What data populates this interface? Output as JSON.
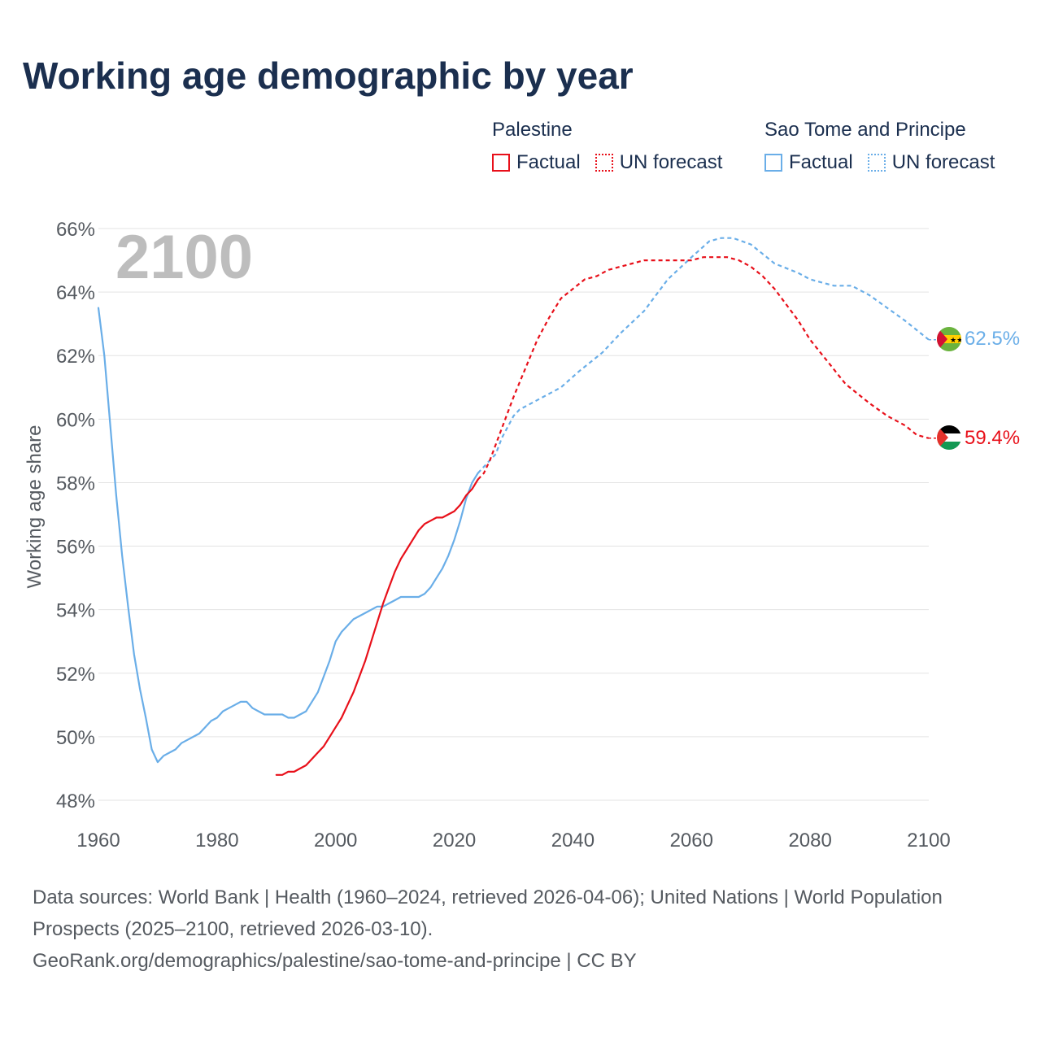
{
  "title": "Working age demographic by year",
  "legend": {
    "palestine": {
      "group": "Palestine",
      "factual": "Factual",
      "forecast": "UN forecast",
      "color": "#e8101a"
    },
    "stp": {
      "group": "Sao Tome and Principe",
      "factual": "Factual",
      "forecast": "UN forecast",
      "color": "#6aaee8"
    }
  },
  "footer": {
    "line1": "Data sources: World Bank | Health (1960–2024, retrieved 2026-04-06); United Nations | World Population Prospects (2025–2100, retrieved 2026-03-10).",
    "line2": "GeoRank.org/demographics/palestine/sao-tome-and-principe | CC BY"
  },
  "chart_data": {
    "type": "line",
    "title": "Working age demographic by year",
    "year_label": "2100",
    "xlabel": "",
    "ylabel": "Working age share",
    "xlim": [
      1960,
      2100
    ],
    "ylim": [
      48,
      66
    ],
    "x_ticks": [
      1960,
      1980,
      2000,
      2020,
      2040,
      2060,
      2080,
      2100
    ],
    "x_tick_labels": [
      "1960",
      "1980",
      "2000",
      "2020",
      "2040",
      "2060",
      "2080",
      "2100"
    ],
    "y_ticks": [
      48,
      50,
      52,
      54,
      56,
      58,
      60,
      62,
      64,
      66
    ],
    "y_tick_labels": [
      "48%",
      "50%",
      "52%",
      "54%",
      "56%",
      "58%",
      "60%",
      "62%",
      "64%",
      "66%"
    ],
    "series": [
      {
        "name": "Sao Tome and Principe",
        "color": "#6aaee8",
        "end_label": "62.5%",
        "factual": [
          [
            1960,
            63.5
          ],
          [
            1961,
            62.0
          ],
          [
            1962,
            59.8
          ],
          [
            1963,
            57.6
          ],
          [
            1964,
            55.7
          ],
          [
            1965,
            54.1
          ],
          [
            1966,
            52.6
          ],
          [
            1967,
            51.5
          ],
          [
            1968,
            50.6
          ],
          [
            1969,
            49.6
          ],
          [
            1970,
            49.2
          ],
          [
            1971,
            49.4
          ],
          [
            1972,
            49.5
          ],
          [
            1973,
            49.6
          ],
          [
            1974,
            49.8
          ],
          [
            1975,
            49.9
          ],
          [
            1976,
            50.0
          ],
          [
            1977,
            50.1
          ],
          [
            1978,
            50.3
          ],
          [
            1979,
            50.5
          ],
          [
            1980,
            50.6
          ],
          [
            1981,
            50.8
          ],
          [
            1982,
            50.9
          ],
          [
            1983,
            51.0
          ],
          [
            1984,
            51.1
          ],
          [
            1985,
            51.1
          ],
          [
            1986,
            50.9
          ],
          [
            1987,
            50.8
          ],
          [
            1988,
            50.7
          ],
          [
            1989,
            50.7
          ],
          [
            1990,
            50.7
          ],
          [
            1991,
            50.7
          ],
          [
            1992,
            50.6
          ],
          [
            1993,
            50.6
          ],
          [
            1994,
            50.7
          ],
          [
            1995,
            50.8
          ],
          [
            1996,
            51.1
          ],
          [
            1997,
            51.4
          ],
          [
            1998,
            51.9
          ],
          [
            1999,
            52.4
          ],
          [
            2000,
            53.0
          ],
          [
            2001,
            53.3
          ],
          [
            2002,
            53.5
          ],
          [
            2003,
            53.7
          ],
          [
            2004,
            53.8
          ],
          [
            2005,
            53.9
          ],
          [
            2006,
            54.0
          ],
          [
            2007,
            54.1
          ],
          [
            2008,
            54.1
          ],
          [
            2009,
            54.2
          ],
          [
            2010,
            54.3
          ],
          [
            2011,
            54.4
          ],
          [
            2012,
            54.4
          ],
          [
            2013,
            54.4
          ],
          [
            2014,
            54.4
          ],
          [
            2015,
            54.5
          ],
          [
            2016,
            54.7
          ],
          [
            2017,
            55.0
          ],
          [
            2018,
            55.3
          ],
          [
            2019,
            55.7
          ],
          [
            2020,
            56.2
          ],
          [
            2021,
            56.8
          ],
          [
            2022,
            57.5
          ],
          [
            2023,
            58.0
          ],
          [
            2024,
            58.3
          ]
        ],
        "forecast": [
          [
            2024,
            58.3
          ],
          [
            2025,
            58.5
          ],
          [
            2027,
            58.9
          ],
          [
            2028,
            59.4
          ],
          [
            2030,
            60.1
          ],
          [
            2031,
            60.3
          ],
          [
            2035,
            60.7
          ],
          [
            2038,
            61.0
          ],
          [
            2041,
            61.5
          ],
          [
            2045,
            62.1
          ],
          [
            2048,
            62.7
          ],
          [
            2052,
            63.4
          ],
          [
            2056,
            64.4
          ],
          [
            2060,
            65.1
          ],
          [
            2063,
            65.6
          ],
          [
            2065,
            65.7
          ],
          [
            2067,
            65.7
          ],
          [
            2070,
            65.5
          ],
          [
            2072,
            65.2
          ],
          [
            2074,
            64.9
          ],
          [
            2078,
            64.6
          ],
          [
            2080,
            64.4
          ],
          [
            2082,
            64.3
          ],
          [
            2084,
            64.2
          ],
          [
            2087,
            64.2
          ],
          [
            2090,
            63.9
          ],
          [
            2093,
            63.5
          ],
          [
            2096,
            63.1
          ],
          [
            2098,
            62.8
          ],
          [
            2100,
            62.5
          ]
        ]
      },
      {
        "name": "Palestine",
        "color": "#e8101a",
        "end_label": "59.4%",
        "factual": [
          [
            1990,
            48.8
          ],
          [
            1991,
            48.8
          ],
          [
            1992,
            48.9
          ],
          [
            1993,
            48.9
          ],
          [
            1994,
            49.0
          ],
          [
            1995,
            49.1
          ],
          [
            1996,
            49.3
          ],
          [
            1997,
            49.5
          ],
          [
            1998,
            49.7
          ],
          [
            1999,
            50.0
          ],
          [
            2000,
            50.3
          ],
          [
            2001,
            50.6
          ],
          [
            2002,
            51.0
          ],
          [
            2003,
            51.4
          ],
          [
            2004,
            51.9
          ],
          [
            2005,
            52.4
          ],
          [
            2006,
            53.0
          ],
          [
            2007,
            53.6
          ],
          [
            2008,
            54.2
          ],
          [
            2009,
            54.7
          ],
          [
            2010,
            55.2
          ],
          [
            2011,
            55.6
          ],
          [
            2012,
            55.9
          ],
          [
            2013,
            56.2
          ],
          [
            2014,
            56.5
          ],
          [
            2015,
            56.7
          ],
          [
            2016,
            56.8
          ],
          [
            2017,
            56.9
          ],
          [
            2018,
            56.9
          ],
          [
            2019,
            57.0
          ],
          [
            2020,
            57.1
          ],
          [
            2021,
            57.3
          ],
          [
            2022,
            57.6
          ],
          [
            2023,
            57.8
          ],
          [
            2024,
            58.1
          ]
        ],
        "forecast": [
          [
            2024,
            58.1
          ],
          [
            2025,
            58.3
          ],
          [
            2026,
            58.7
          ],
          [
            2028,
            59.7
          ],
          [
            2030,
            60.7
          ],
          [
            2032,
            61.6
          ],
          [
            2034,
            62.5
          ],
          [
            2036,
            63.2
          ],
          [
            2038,
            63.8
          ],
          [
            2040,
            64.1
          ],
          [
            2042,
            64.4
          ],
          [
            2044,
            64.5
          ],
          [
            2046,
            64.7
          ],
          [
            2048,
            64.8
          ],
          [
            2050,
            64.9
          ],
          [
            2052,
            65.0
          ],
          [
            2060,
            65.0
          ],
          [
            2062,
            65.1
          ],
          [
            2066,
            65.1
          ],
          [
            2068,
            65.0
          ],
          [
            2070,
            64.8
          ],
          [
            2072,
            64.5
          ],
          [
            2074,
            64.1
          ],
          [
            2076,
            63.6
          ],
          [
            2078,
            63.1
          ],
          [
            2080,
            62.5
          ],
          [
            2083,
            61.8
          ],
          [
            2086,
            61.1
          ],
          [
            2088,
            60.8
          ],
          [
            2090,
            60.5
          ],
          [
            2093,
            60.1
          ],
          [
            2096,
            59.8
          ],
          [
            2098,
            59.5
          ],
          [
            2100,
            59.4
          ]
        ]
      }
    ]
  }
}
